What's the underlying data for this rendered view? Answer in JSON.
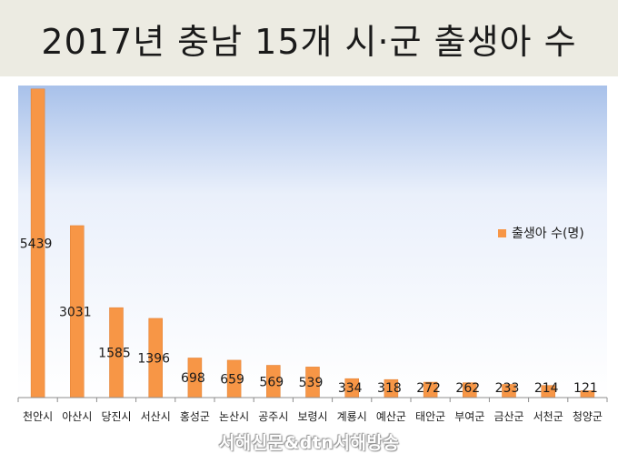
{
  "title": "2017년 충남 15개 시·군 출생아 수",
  "watermark": "서해신문&dtn서해방송",
  "colors": {
    "bar": "#f79646",
    "bar_stroke": "#e07b2a",
    "plot_top": "#a8c1ea",
    "plot_bottom": "#ffffff"
  },
  "chart_data": {
    "type": "bar",
    "categories": [
      "천안시",
      "아산시",
      "당진시",
      "서산시",
      "홍성군",
      "논산시",
      "공주시",
      "보령시",
      "계룡시",
      "예산군",
      "태안군",
      "부여군",
      "금산군",
      "서천군",
      "청양군"
    ],
    "series": [
      {
        "name": "출생아 수(명)",
        "values": [
          5439,
          3031,
          1585,
          1396,
          698,
          659,
          569,
          539,
          334,
          318,
          272,
          262,
          233,
          214,
          121
        ]
      }
    ],
    "data_labels": [
      "5439",
      "3031",
      "1585",
      "1396",
      "698",
      "659",
      "569",
      "539",
      "334",
      "318",
      "272",
      "262",
      "233",
      "214",
      "121"
    ],
    "ylim": [
      0,
      5500
    ],
    "grid": false,
    "legend_position": "right"
  }
}
